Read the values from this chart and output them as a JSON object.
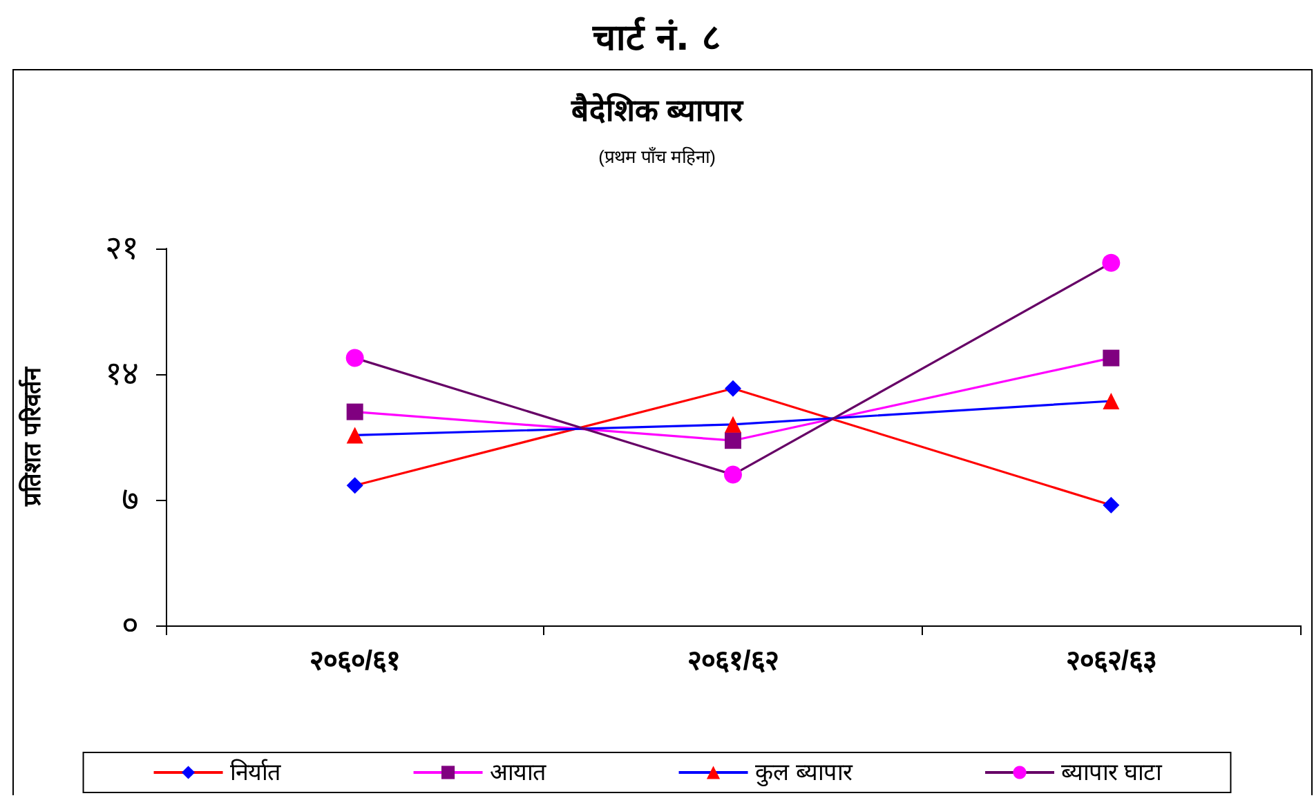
{
  "chart_data": {
    "type": "line",
    "title": "चार्ट नं. ८",
    "subtitle": "बैदेशिक ब्यापार",
    "annotations": [
      "(प्रथम पाँच महिना)"
    ],
    "ylabel": "प्रतिशत परिवर्तन",
    "categories": [
      "२०६०/६१",
      "२०६१/६२",
      "२०६२/६३"
    ],
    "ylim": [
      0,
      21
    ],
    "yticks": [
      {
        "value": 0,
        "label": "०"
      },
      {
        "value": 7,
        "label": "७"
      },
      {
        "value": 14,
        "label": "१४"
      },
      {
        "value": 21,
        "label": "२१"
      }
    ],
    "grid": false,
    "legend": "bottom",
    "series": [
      {
        "name": "निर्यात",
        "color": "#ff0000",
        "colors": [
          "#0000ff",
          "#0000ff",
          "#0000ff"
        ],
        "marker": "diamond",
        "values": [
          7.8,
          13.2,
          6.7
        ]
      },
      {
        "name": "आयात",
        "color": "#ff00ff",
        "colors": [
          "#800080",
          "#800080",
          "#800080"
        ],
        "marker": "square",
        "values": [
          11.9,
          10.3,
          14.9
        ]
      },
      {
        "name": "कुल ब्यापार",
        "color": "#0000ff",
        "colors": [
          "#ff0000",
          "#ff0000",
          "#ff0000"
        ],
        "marker": "triangle",
        "values": [
          10.6,
          11.2,
          12.5
        ]
      },
      {
        "name": "ब्यापार घाटा",
        "color": "#660066",
        "colors": [
          "#ff00ff",
          "#ff00ff",
          "#ff00ff"
        ],
        "marker": "circle",
        "values": [
          14.9,
          8.4,
          20.2
        ]
      }
    ]
  }
}
